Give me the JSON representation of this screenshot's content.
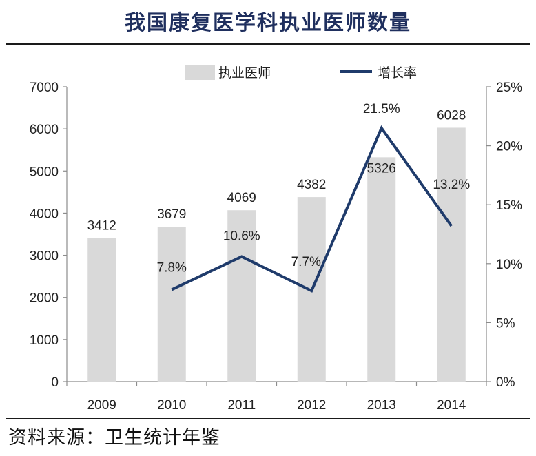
{
  "title": "我国康复医学科执业医师数量",
  "source": "资料来源：卫生统计年鉴",
  "chart_data": {
    "type": "bar",
    "categories": [
      "2009",
      "2010",
      "2011",
      "2012",
      "2013",
      "2014"
    ],
    "series": [
      {
        "name": "执业医师",
        "type": "bar",
        "axis": "left",
        "values": [
          3412,
          3679,
          4069,
          4382,
          5326,
          6028
        ],
        "labels": [
          "3412",
          "3679",
          "4069",
          "4382",
          "5326",
          "6028"
        ],
        "color": "#d9d9d9"
      },
      {
        "name": "增长率",
        "type": "line",
        "axis": "right",
        "values": [
          null,
          7.8,
          10.6,
          7.7,
          21.5,
          13.2
        ],
        "labels": [
          "",
          "7.8%",
          "10.6%",
          "7.7%",
          "21.5%",
          "13.2%"
        ],
        "color": "#1f3b6b"
      }
    ],
    "y_left": {
      "min": 0,
      "max": 7000,
      "ticks": [
        "0",
        "1000",
        "2000",
        "3000",
        "4000",
        "5000",
        "6000",
        "7000"
      ]
    },
    "y_right": {
      "min": 0,
      "max": 25,
      "ticks": [
        "0%",
        "5%",
        "10%",
        "15%",
        "20%",
        "25%"
      ]
    },
    "legend_position": "top",
    "grid": false
  }
}
